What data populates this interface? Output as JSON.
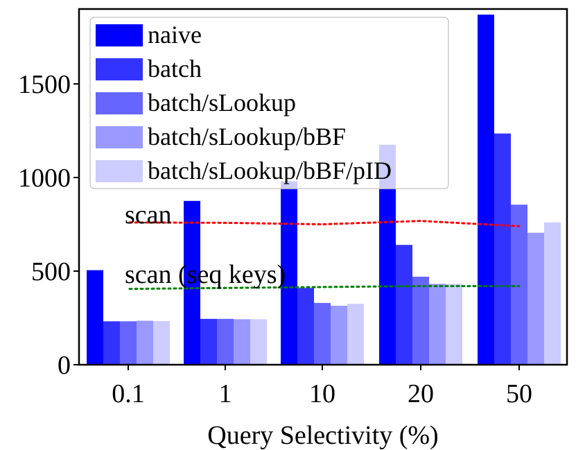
{
  "chart_data": {
    "type": "bar",
    "xlabel": "Query Selectivity (%)",
    "ylabel": "",
    "categories": [
      "0.1",
      "1",
      "10",
      "20",
      "50"
    ],
    "ylim": [
      0,
      1900
    ],
    "yticks": [
      0,
      500,
      1000,
      1500
    ],
    "legend_position": "top-left",
    "series": [
      {
        "name": "naive",
        "values": [
          505,
          875,
          980,
          1175,
          1870
        ],
        "color": "#0000ff"
      },
      {
        "name": "batch",
        "values": [
          232,
          245,
          410,
          640,
          1235
        ],
        "color": "#3333ff"
      },
      {
        "name": "batch/sLookup",
        "values": [
          232,
          245,
          330,
          470,
          855
        ],
        "color": "#6666ff"
      },
      {
        "name": "batch/sLookup/bBF",
        "values": [
          235,
          243,
          315,
          432,
          705
        ],
        "color": "#9999ff"
      },
      {
        "name": "batch/sLookup/bBF/pID",
        "values": [
          233,
          243,
          325,
          432,
          760
        ],
        "color": "#ccccff"
      }
    ],
    "lines": [
      {
        "name": "scan",
        "values": [
          760,
          758,
          750,
          768,
          740
        ],
        "color": "#ff0000",
        "style": "dotted"
      },
      {
        "name": "scan (seq keys)",
        "values": [
          405,
          410,
          415,
          420,
          420
        ],
        "color": "#008000",
        "style": "dotted"
      }
    ],
    "annotations": [
      "scan",
      "scan (seq keys)"
    ]
  }
}
